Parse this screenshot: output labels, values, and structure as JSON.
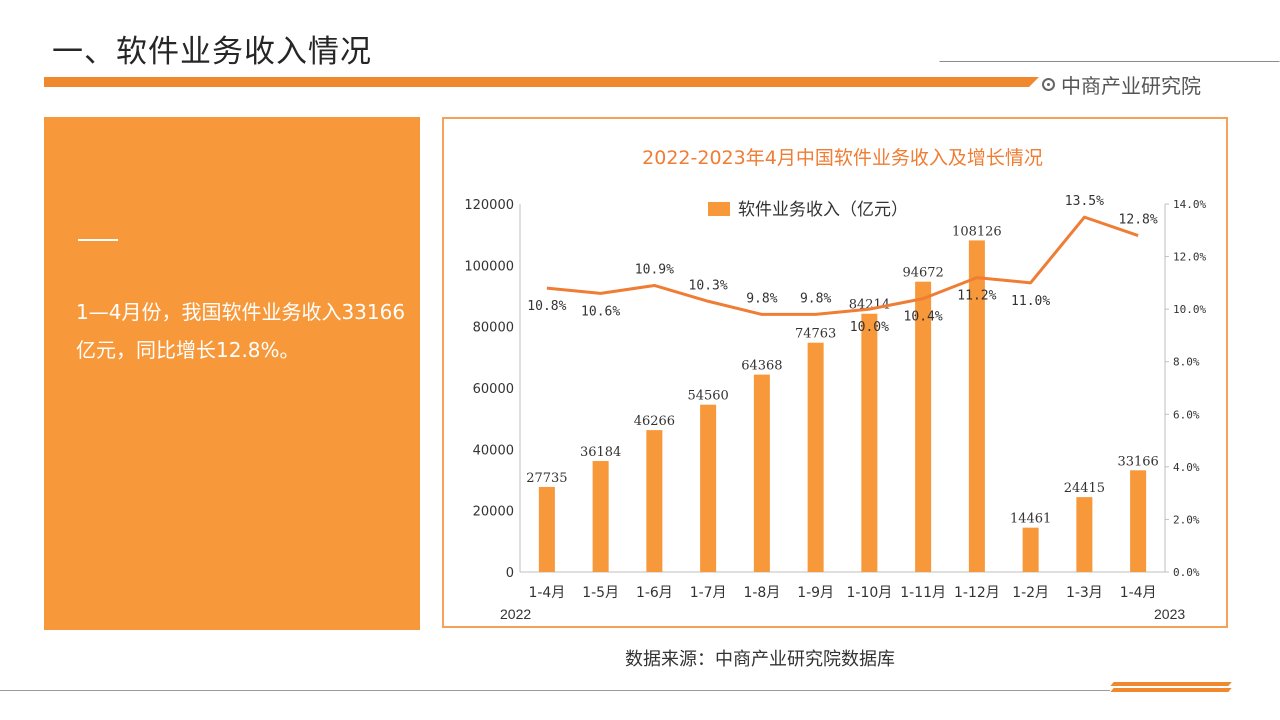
{
  "header": {
    "title": "一、软件业务收入情况",
    "brand": "中商产业研究院",
    "brand_icon": "target-icon",
    "accent_color": "#f0892e"
  },
  "summary": {
    "text": "1—4月份，我国软件业务收入33166亿元，同比增长12.8%。"
  },
  "footer": {
    "source": "数据来源：中商产业研究院数据库"
  },
  "chart_data": {
    "type": "bar+line",
    "title": "2022-2023年4月中国软件业务收入及增长情况",
    "legend": {
      "label": "软件业务收入（亿元）",
      "placement": "top"
    },
    "categories": [
      "1-4月",
      "1-5月",
      "1-6月",
      "1-7月",
      "1-8月",
      "1-9月",
      "1-10月",
      "1-11月",
      "1-12月",
      "1-2月",
      "1-3月",
      "1-4月"
    ],
    "year_labels": {
      "start": "2022",
      "end": "2023"
    },
    "bar_series": {
      "values": [
        27735,
        36184,
        46266,
        54560,
        64368,
        74763,
        84214,
        94672,
        108126,
        14461,
        24415,
        33166
      ],
      "color": "#f7983a"
    },
    "line_series": {
      "values": [
        10.8,
        10.6,
        10.9,
        10.3,
        9.8,
        9.8,
        10.0,
        10.4,
        11.2,
        11.0,
        13.5,
        12.8
      ],
      "labels": [
        "10.8%",
        "10.6%",
        "10.9%",
        "10.3%",
        "9.8%",
        "9.8%",
        "10.0%",
        "10.4%",
        "11.2%",
        "11.0%",
        "13.5%",
        "12.8%"
      ],
      "color": "#ef7d34"
    },
    "y_left": {
      "min": 0,
      "max": 120000,
      "ticks": [
        "0",
        "20000",
        "40000",
        "60000",
        "80000",
        "100000",
        "120000"
      ]
    },
    "y_right": {
      "min": 0,
      "max": 14,
      "ticks": [
        "0.0%",
        "2.0%",
        "4.0%",
        "6.0%",
        "8.0%",
        "10.0%",
        "12.0%",
        "14.0%"
      ]
    },
    "grid": false
  }
}
